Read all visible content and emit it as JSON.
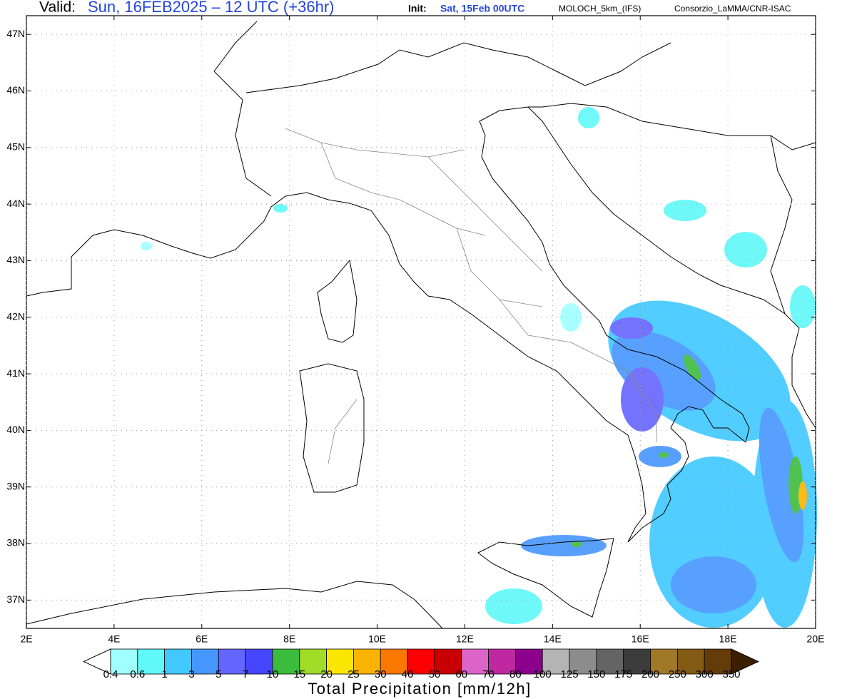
{
  "header": {
    "valid_label": "Valid:",
    "valid": "Sun, 16FEB2025 – 12 UTC (+36hr)",
    "init_label": "Init:",
    "init": "Sat, 15Feb 00UTC",
    "model": "MOLOCH_5km_(IFS)",
    "credit": "Consorzio_LaMMA/CNR-ISAC"
  },
  "map": {
    "xlim": [
      2,
      20
    ],
    "ylim": [
      36.5,
      47.33
    ],
    "lat_ticks": [
      {
        "value": 47,
        "label": "47N"
      },
      {
        "value": 46,
        "label": "46N"
      },
      {
        "value": 45,
        "label": "45N"
      },
      {
        "value": 44,
        "label": "44N"
      },
      {
        "value": 43,
        "label": "43N"
      },
      {
        "value": 42,
        "label": "42N"
      },
      {
        "value": 41,
        "label": "41N"
      },
      {
        "value": 40,
        "label": "40N"
      },
      {
        "value": 39,
        "label": "39N"
      },
      {
        "value": 38,
        "label": "38N"
      },
      {
        "value": 37,
        "label": "37N"
      }
    ],
    "lon_ticks": [
      {
        "value": 2,
        "label": "2E"
      },
      {
        "value": 4,
        "label": "4E"
      },
      {
        "value": 6,
        "label": "6E"
      },
      {
        "value": 8,
        "label": "8E"
      },
      {
        "value": 10,
        "label": "10E"
      },
      {
        "value": 12,
        "label": "12E"
      },
      {
        "value": 14,
        "label": "14E"
      },
      {
        "value": 16,
        "label": "16E"
      },
      {
        "value": 18,
        "label": "18E"
      },
      {
        "value": 20,
        "label": "20E"
      }
    ],
    "grid": true
  },
  "colorbar": {
    "title": "Total Precipitation [mm/12h]",
    "levels": [
      0.4,
      0.6,
      1,
      3,
      5,
      7,
      10,
      15,
      20,
      25,
      30,
      40,
      50,
      60,
      70,
      80,
      100,
      125,
      150,
      175,
      200,
      250,
      300,
      350
    ],
    "colors": [
      "#ffffff",
      "#a0ffff",
      "#60f8f8",
      "#40c8ff",
      "#4696ff",
      "#6464ff",
      "#4646ff",
      "#3cbc3c",
      "#a0dc28",
      "#fae600",
      "#fab400",
      "#fa7800",
      "#fa0000",
      "#c80000",
      "#dc64c8",
      "#be28a0",
      "#8c008c",
      "#b4b4b4",
      "#8c8c8c",
      "#646464",
      "#3c3c3c",
      "#a07828",
      "#825a14",
      "#643c0a",
      "#3c1e00"
    ]
  }
}
